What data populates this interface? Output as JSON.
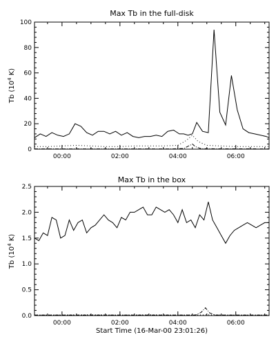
{
  "chart_data": [
    {
      "type": "line",
      "title": "Max Tb in the full-disk",
      "xlabel": "",
      "ylabel_base": "Tb (10",
      "ylabel_exp": "4",
      "ylabel_unit": " K)",
      "xlim": [
        -0.95,
        7.15
      ],
      "ylim": [
        0,
        100
      ],
      "x_ticks": [
        0,
        2,
        4,
        6
      ],
      "x_tick_labels": [
        "00:00",
        "02:00",
        "04:00",
        "06:00"
      ],
      "y_ticks": [
        0,
        20,
        40,
        60,
        80,
        100
      ],
      "y_tick_labels": [
        "0",
        "20",
        "40",
        "60",
        "80",
        "100"
      ],
      "grid": false,
      "series": [
        {
          "style": "solid",
          "x": [
            -0.95,
            -0.75,
            -0.55,
            -0.35,
            -0.15,
            0.05,
            0.25,
            0.45,
            0.65,
            0.85,
            1.05,
            1.25,
            1.45,
            1.65,
            1.85,
            2.05,
            2.25,
            2.45,
            2.65,
            2.85,
            3.05,
            3.25,
            3.45,
            3.65,
            3.85,
            4.05,
            4.2,
            4.35,
            4.5,
            4.65,
            4.85,
            5.05,
            5.25,
            5.45,
            5.65,
            5.85,
            6.05,
            6.25,
            6.45,
            6.65,
            6.85,
            7.05,
            7.15
          ],
          "y": [
            9,
            12,
            10,
            13,
            11,
            10,
            12,
            20,
            18,
            13,
            11,
            14,
            14,
            12,
            14,
            11,
            13,
            10,
            9,
            10,
            10,
            11,
            10,
            14,
            15,
            12,
            12,
            11,
            12,
            21,
            14,
            13,
            94,
            29,
            19,
            58,
            31,
            16,
            13,
            12,
            11,
            10,
            9
          ]
        },
        {
          "style": "dotted",
          "x": [
            -0.95,
            -0.5,
            0,
            0.5,
            1,
            1.5,
            2,
            2.5,
            3,
            3.5,
            4,
            4.3,
            4.5,
            4.7,
            5,
            5.5,
            6,
            6.5,
            7.15
          ],
          "y": [
            2,
            2,
            2.5,
            3,
            2.5,
            2,
            2,
            2.5,
            2.5,
            2.5,
            3,
            7,
            11,
            6,
            3,
            2.5,
            2,
            2,
            2
          ]
        },
        {
          "style": "dashdot",
          "x": [
            -0.95,
            3.8,
            4.2,
            4.5,
            4.6,
            4.8,
            7.15
          ],
          "y": [
            0.2,
            0.2,
            0.5,
            4,
            2,
            0.3,
            0.2
          ]
        }
      ]
    },
    {
      "type": "line",
      "title": "Max Tb in the box",
      "xlabel": "Start Time (16-Mar-00 23:01:26)",
      "ylabel_base": "Tb (10",
      "ylabel_exp": "4",
      "ylabel_unit": " K)",
      "xlim": [
        -0.95,
        7.15
      ],
      "ylim": [
        0,
        2.5
      ],
      "x_ticks": [
        0,
        2,
        4,
        6
      ],
      "x_tick_labels": [
        "00:00",
        "02:00",
        "04:00",
        "06:00"
      ],
      "y_ticks": [
        0,
        0.5,
        1.0,
        1.5,
        2.0,
        2.5
      ],
      "y_tick_labels": [
        "0.0",
        "0.5",
        "1.0",
        "1.5",
        "2.0",
        "2.5"
      ],
      "grid": false,
      "series": [
        {
          "style": "solid",
          "x": [
            -0.95,
            -0.8,
            -0.65,
            -0.5,
            -0.35,
            -0.2,
            -0.05,
            0.1,
            0.25,
            0.4,
            0.55,
            0.7,
            0.85,
            1.0,
            1.15,
            1.3,
            1.45,
            1.6,
            1.75,
            1.9,
            2.05,
            2.2,
            2.35,
            2.5,
            2.65,
            2.8,
            2.95,
            3.1,
            3.25,
            3.4,
            3.55,
            3.7,
            3.85,
            4.0,
            4.15,
            4.3,
            4.45,
            4.6,
            4.75,
            4.9,
            5.05,
            5.2,
            5.35,
            5.5,
            5.65,
            5.8,
            5.95,
            6.1,
            6.25,
            6.4,
            6.55,
            6.7,
            6.85,
            7.0,
            7.15
          ],
          "y": [
            1.5,
            1.45,
            1.6,
            1.55,
            1.9,
            1.85,
            1.5,
            1.55,
            1.85,
            1.65,
            1.8,
            1.85,
            1.6,
            1.7,
            1.75,
            1.85,
            1.95,
            1.85,
            1.8,
            1.7,
            1.9,
            1.85,
            2.0,
            2.0,
            2.05,
            2.1,
            1.95,
            1.95,
            2.1,
            2.05,
            2.0,
            2.05,
            1.95,
            1.8,
            2.05,
            1.8,
            1.85,
            1.7,
            1.95,
            1.85,
            2.2,
            1.85,
            1.7,
            1.55,
            1.4,
            1.55,
            1.65,
            1.7,
            1.75,
            1.8,
            1.75,
            1.7,
            1.75,
            1.8,
            1.8
          ]
        },
        {
          "style": "dotted",
          "x": [
            -0.95,
            1,
            2,
            3,
            4,
            5,
            6,
            7.15
          ],
          "y": [
            0.01,
            0.015,
            0.01,
            0.015,
            0.01,
            0.015,
            0.01,
            0.01
          ]
        },
        {
          "style": "dashdot",
          "x": [
            -0.95,
            4.6,
            4.8,
            4.95,
            5.1,
            5.3,
            7.15
          ],
          "y": [
            0.01,
            0.01,
            0.06,
            0.15,
            0.05,
            0.01,
            0.01
          ]
        }
      ]
    }
  ]
}
